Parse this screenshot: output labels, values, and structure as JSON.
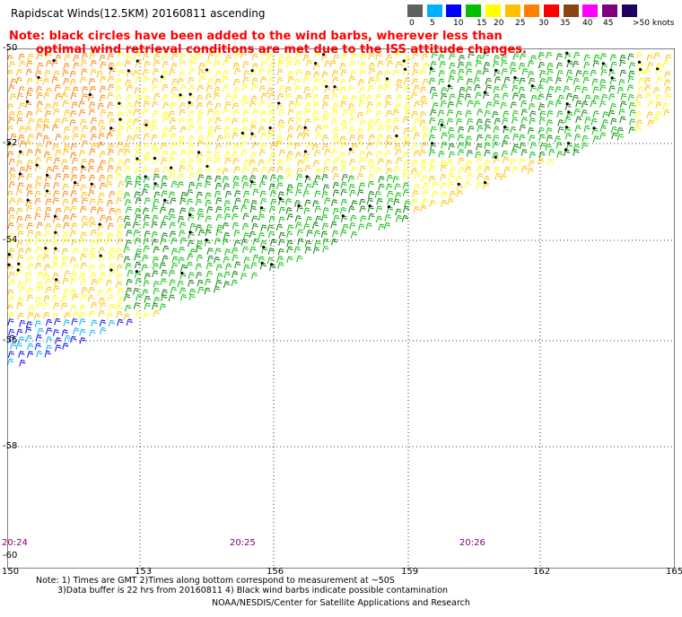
{
  "title": "Rapidscat Winds(12.5KM) 20160811 ascending",
  "note": {
    "line1": "Note: black circles have been added to the wind barbs, wherever less than",
    "line2": "optimal wind retrieval conditions are met due to the ISS attitude changes."
  },
  "color_scale": {
    "colors": [
      "#606060",
      "#00b0ff",
      "#0000ff",
      "#00c000",
      "#ffff00",
      "#ffc000",
      "#ff8000",
      "#ff0000",
      "#8b4513",
      "#ff00ff",
      "#800080",
      "#200060"
    ],
    "labels": [
      "0",
      "5",
      "10",
      "15",
      "20",
      "25",
      "30",
      "35",
      "40",
      "45",
      ">50 knots"
    ]
  },
  "latitudes": [
    "-50",
    "-52",
    "-54",
    "-56",
    "-58",
    "-60"
  ],
  "longitudes": [
    "150",
    "153",
    "156",
    "159",
    "162",
    "165"
  ],
  "times": [
    "20:24",
    "20:25",
    "20:26"
  ],
  "footer": {
    "line1": "Note: 1) Times are GMT 2)Times along bottom correspond to measurement at ~50S",
    "line2": "3)Data buffer is 22 hrs from 20160811 4) Black wind barbs indicate possible contamination",
    "line3": "NOAA/NESDIS/Center for Satellite Applications and Research"
  }
}
